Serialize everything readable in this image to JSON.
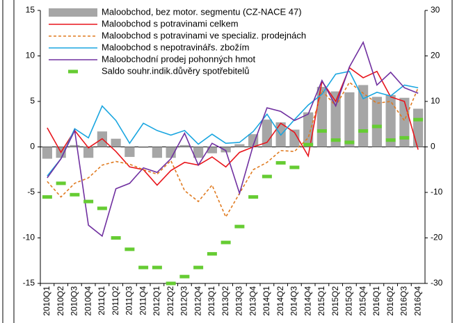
{
  "chart_data": {
    "type": "combo",
    "categories": [
      "2010Q1",
      "2010Q2",
      "2010Q3",
      "2010Q4",
      "2011Q1",
      "2011Q2",
      "2011Q3",
      "2011Q4",
      "2012Q1",
      "2012Q2",
      "2012Q3",
      "2012Q4",
      "2013Q1",
      "2013Q2",
      "2013Q3",
      "2013Q4",
      "2014Q1",
      "2014Q2",
      "2014Q3",
      "2014Q4",
      "2015Q1",
      "2015Q2",
      "2015Q3",
      "2015Q4",
      "2016Q1",
      "2016Q2",
      "2016Q3",
      "2016Q4"
    ],
    "ylim": [
      -15,
      15
    ],
    "yticks": [
      -15,
      -10,
      -5,
      0,
      5,
      10,
      15
    ],
    "y2lim": [
      -30,
      30
    ],
    "y2ticks": [
      -30,
      -20,
      -10,
      0,
      10,
      20,
      30
    ],
    "series": [
      {
        "name": "Maloobchod, bez motor. segmentu (CZ-NACE 47)",
        "type": "bar",
        "color": "#a6a6a6",
        "values": [
          -1.3,
          -1.2,
          0.2,
          -1.2,
          1.7,
          0.9,
          -1.1,
          -0.1,
          -1.2,
          -1.2,
          0.2,
          -1.2,
          -0.7,
          -0.6,
          0.3,
          1.4,
          3.0,
          2.7,
          1.9,
          3.8,
          6.6,
          6.1,
          6.0,
          6.8,
          5.5,
          5.7,
          5.4,
          4.2
        ]
      },
      {
        "name": "Maloobchod s potravinami celkem",
        "type": "line",
        "color": "#e8141b",
        "dash": false,
        "values": [
          2.1,
          -0.6,
          1.8,
          -0.1,
          0.9,
          -0.5,
          -2.2,
          -2.5,
          -4.2,
          -2.6,
          -1.7,
          -2.0,
          -1.1,
          -2.2,
          -0.6,
          0.0,
          0.5,
          2.6,
          1.6,
          -1.0,
          7.2,
          5.0,
          8.7,
          7.6,
          8.3,
          5.5,
          5.0,
          -0.3
        ]
      },
      {
        "name": "Maloobchod s potravinami ve specializ. prodejnách",
        "type": "line",
        "color": "#e07a1f",
        "dash": true,
        "values": [
          -3.8,
          -5.5,
          -4.0,
          -3.4,
          -2.0,
          -1.6,
          -1.9,
          -2.5,
          -3.0,
          -1.5,
          -4.8,
          -6.0,
          -4.2,
          -7.7,
          -5.1,
          -2.5,
          -1.7,
          -0.4,
          -0.5,
          1.0,
          6.2,
          4.5,
          7.1,
          5.9,
          4.8,
          5.0,
          2.9,
          6.5
        ]
      },
      {
        "name": "Maloobchod s nepotravinářs. zbožím",
        "type": "line",
        "color": "#1aa6e0",
        "dash": false,
        "values": [
          -3.2,
          -1.3,
          2.0,
          1.0,
          4.5,
          2.9,
          0.4,
          2.6,
          1.8,
          1.3,
          1.8,
          0.3,
          1.4,
          0.4,
          0.5,
          1.7,
          3.6,
          1.3,
          3.0,
          4.6,
          5.8,
          8.0,
          8.3,
          5.3,
          6.0,
          5.6,
          6.8,
          6.5
        ]
      },
      {
        "name": "Maloobchodní prodej pohonných hmot",
        "type": "line",
        "color": "#7030a0",
        "dash": false,
        "values": [
          -3.4,
          -1.3,
          1.8,
          -8.6,
          -9.8,
          -4.6,
          -4.0,
          -2.3,
          -2.8,
          -1.3,
          1.5,
          -2.0,
          0.4,
          -0.4,
          -5.1,
          0.2,
          4.3,
          3.9,
          2.9,
          3.6,
          7.3,
          4.5,
          8.8,
          11.5,
          6.8,
          8.2,
          6.5,
          5.9
        ]
      },
      {
        "name": "Saldo souhr.indik.důvěry spotřebitelů",
        "type": "marker",
        "axis": "y2",
        "color": "#66cc33",
        "values": [
          -11,
          -8,
          -10.5,
          -12,
          -13.5,
          -20,
          -22.5,
          -26.5,
          -26.5,
          -30,
          -28.5,
          -26.5,
          -23.5,
          -21,
          -17.5,
          -11,
          -6.5,
          -3.5,
          -4.5,
          0.5,
          3.5,
          1.5,
          1,
          3.5,
          4.5,
          1.5,
          2,
          6
        ]
      }
    ]
  }
}
